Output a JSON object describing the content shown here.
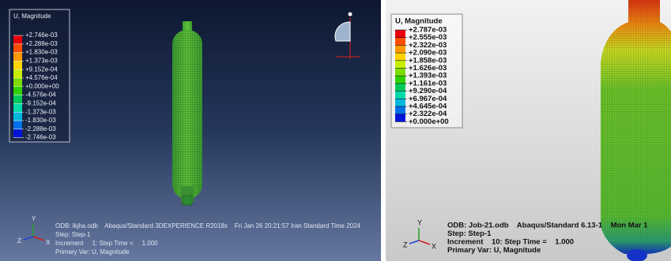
{
  "left_panel": {
    "legend": {
      "title": "U, Magnitude",
      "labels": [
        "+2.746e-03",
        "+2.288e-03",
        "+1.830e-03",
        "+1.373e-03",
        "+9.152e-04",
        "+4.576e-04",
        "+0.000e+00",
        "-4.576e-04",
        "-9.152e-04",
        "-1.373e-03",
        "-1.830e-03",
        "-2.288e-03",
        "-2.746e-03"
      ]
    },
    "info": [
      "ODB: lkjha.odb    Abaqus/Standard 3DEXPERIENCE R2018x    Fri Jan 26 20:21:57 Iran Standard Time 2024",
      "Step: Step-1",
      "Increment     1: Step Time =     1.000",
      "Primary Var: U, Magnitude"
    ],
    "triad": {
      "y": "Y",
      "z": "Z",
      "x": "X"
    }
  },
  "right_panel": {
    "legend": {
      "title": "U, Magnitude",
      "labels": [
        "+2.787e-03",
        "+2.555e-03",
        "+2.322e-03",
        "+2.090e-03",
        "+1.858e-03",
        "+1.626e-03",
        "+1.393e-03",
        "+1.161e-03",
        "+9.290e-04",
        "+6.967e-04",
        "+4.645e-04",
        "+2.322e-04",
        "+0.000e+00"
      ]
    },
    "info": [
      "ODB: Job-21.odb    Abaqus/Standard 6.13-1    Mon Mar 1",
      "Step: Step-1",
      "Increment    10: Step Time =    1.000",
      "Primary Var: U, Magnitude"
    ],
    "triad": {
      "y": "Y",
      "z": "Z",
      "x": "X"
    }
  }
}
